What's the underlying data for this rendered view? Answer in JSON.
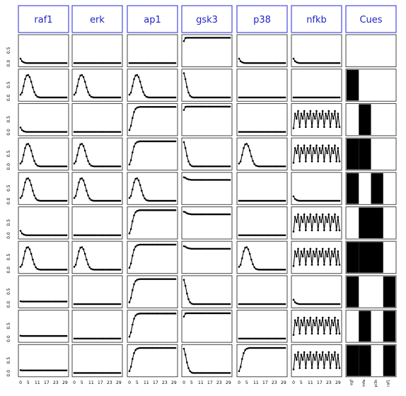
{
  "chart_data": {
    "type": "line",
    "columns": [
      "raf1",
      "erk",
      "ap1",
      "gsk3",
      "p38",
      "nfkb"
    ],
    "cues_header": "Cues",
    "cue_labels": [
      "egf",
      "tnfa",
      "pi3k",
      "raf1"
    ],
    "x": [
      0,
      1,
      2,
      3,
      4,
      5,
      6,
      7,
      8,
      9,
      10,
      11,
      12,
      13,
      14,
      15,
      16,
      17,
      18,
      19,
      20,
      21,
      22,
      23,
      24,
      25,
      26,
      27,
      28,
      29,
      30
    ],
    "x_tick_labels": [
      "0",
      "5",
      "11",
      "17",
      "23",
      "29"
    ],
    "x_tick_values": [
      0,
      5,
      11,
      17,
      23,
      29
    ],
    "y_tick_labels": [
      "0.0",
      "0.5"
    ],
    "ylim": [
      0,
      1
    ],
    "rows": [
      {
        "cues": [
          0,
          0,
          0,
          0
        ],
        "series": {
          "raf1": "dec",
          "erk": "zero",
          "ap1": "zero",
          "gsk3": "high",
          "p38": "dec",
          "nfkb": "dec"
        }
      },
      {
        "cues": [
          1,
          0,
          0,
          0
        ],
        "series": {
          "raf1": "pulse",
          "erk": "pulse",
          "ap1": "pulse",
          "gsk3": "fall",
          "p38": "zero",
          "nfkb": "zero"
        }
      },
      {
        "cues": [
          0,
          1,
          0,
          0
        ],
        "series": {
          "raf1": "dec",
          "erk": "zero",
          "ap1": "rise",
          "gsk3": "high",
          "p38": "zero",
          "nfkb": "osc"
        }
      },
      {
        "cues": [
          1,
          1,
          0,
          0
        ],
        "series": {
          "raf1": "pulse",
          "erk": "pulse",
          "ap1": "rise",
          "gsk3": "fall",
          "p38": "pulse",
          "nfkb": "osc"
        }
      },
      {
        "cues": [
          1,
          0,
          1,
          0
        ],
        "series": {
          "raf1": "pulse",
          "erk": "pulse",
          "ap1": "pulse",
          "gsk3": "highsag",
          "p38": "zero",
          "nfkb": "dec"
        }
      },
      {
        "cues": [
          0,
          1,
          1,
          0
        ],
        "series": {
          "raf1": "dec",
          "erk": "zero",
          "ap1": "rise",
          "gsk3": "highsag",
          "p38": "zero",
          "nfkb": "osc"
        }
      },
      {
        "cues": [
          1,
          1,
          1,
          0
        ],
        "series": {
          "raf1": "pulse",
          "erk": "pulse",
          "ap1": "rise",
          "gsk3": "highsag",
          "p38": "pulse",
          "nfkb": "osc"
        }
      },
      {
        "cues": [
          1,
          0,
          0,
          1
        ],
        "series": {
          "raf1": "low",
          "erk": "zero",
          "ap1": "rise",
          "gsk3": "fall",
          "p38": "zero",
          "nfkb": "dec"
        }
      },
      {
        "cues": [
          0,
          1,
          0,
          1
        ],
        "series": {
          "raf1": "low",
          "erk": "zero",
          "ap1": "rise",
          "gsk3": "high",
          "p38": "zero",
          "nfkb": "osc"
        }
      },
      {
        "cues": [
          1,
          1,
          0,
          1
        ],
        "series": {
          "raf1": "low",
          "erk": "zero",
          "ap1": "rise",
          "gsk3": "fall",
          "p38": "rise",
          "nfkb": "osc"
        }
      }
    ],
    "profiles": {
      "zero": [
        0.01,
        0.01,
        0.01,
        0.01,
        0.01,
        0.01,
        0.01,
        0.01,
        0.01,
        0.01,
        0.01,
        0.01,
        0.01,
        0.01,
        0.01,
        0.01,
        0.01,
        0.01,
        0.01,
        0.01,
        0.01,
        0.01,
        0.01,
        0.01,
        0.01,
        0.01,
        0.01,
        0.01,
        0.01,
        0.01,
        0.01
      ],
      "dec": [
        0.18,
        0.08,
        0.04,
        0.02,
        0.01,
        0.01,
        0.01,
        0.01,
        0.01,
        0.01,
        0.01,
        0.01,
        0.01,
        0.01,
        0.01,
        0.01,
        0.01,
        0.01,
        0.01,
        0.01,
        0.01,
        0.01,
        0.01,
        0.01,
        0.01,
        0.01,
        0.01,
        0.01,
        0.01,
        0.01,
        0.01
      ],
      "low": [
        0.12,
        0.11,
        0.11,
        0.11,
        0.11,
        0.11,
        0.11,
        0.11,
        0.11,
        0.11,
        0.11,
        0.11,
        0.11,
        0.11,
        0.11,
        0.11,
        0.11,
        0.11,
        0.11,
        0.11,
        0.11,
        0.11,
        0.11,
        0.11,
        0.11,
        0.11,
        0.11,
        0.11,
        0.11,
        0.11,
        0.11
      ],
      "high": [
        0.86,
        0.98,
        0.99,
        0.99,
        0.99,
        0.99,
        0.99,
        0.99,
        0.99,
        0.99,
        0.99,
        0.99,
        0.99,
        0.99,
        0.99,
        0.99,
        0.99,
        0.99,
        0.99,
        0.99,
        0.99,
        0.99,
        0.99,
        0.99,
        0.99,
        0.99,
        0.99,
        0.99,
        0.99,
        0.99,
        0.99
      ],
      "highsag": [
        0.92,
        0.9,
        0.86,
        0.84,
        0.83,
        0.82,
        0.82,
        0.82,
        0.82,
        0.82,
        0.82,
        0.82,
        0.82,
        0.82,
        0.82,
        0.82,
        0.82,
        0.82,
        0.82,
        0.82,
        0.82,
        0.82,
        0.82,
        0.82,
        0.82,
        0.82,
        0.82,
        0.82,
        0.82,
        0.82,
        0.82
      ],
      "fall": [
        0.95,
        0.72,
        0.42,
        0.2,
        0.08,
        0.03,
        0.01,
        0.01,
        0.01,
        0.01,
        0.01,
        0.01,
        0.01,
        0.01,
        0.01,
        0.01,
        0.01,
        0.01,
        0.01,
        0.01,
        0.01,
        0.01,
        0.01,
        0.01,
        0.01,
        0.01,
        0.01,
        0.01,
        0.01,
        0.01,
        0.01
      ],
      "rise": [
        0.08,
        0.25,
        0.55,
        0.78,
        0.9,
        0.95,
        0.97,
        0.98,
        0.98,
        0.98,
        0.98,
        0.98,
        0.98,
        0.98,
        0.98,
        0.98,
        0.98,
        0.98,
        0.98,
        0.98,
        0.98,
        0.98,
        0.98,
        0.98,
        0.98,
        0.98,
        0.98,
        0.98,
        0.98,
        0.98,
        0.98
      ],
      "pulse": [
        0.12,
        0.2,
        0.45,
        0.72,
        0.86,
        0.88,
        0.8,
        0.62,
        0.4,
        0.22,
        0.1,
        0.04,
        0.02,
        0.01,
        0.01,
        0.01,
        0.01,
        0.01,
        0.01,
        0.01,
        0.01,
        0.01,
        0.01,
        0.01,
        0.01,
        0.01,
        0.01,
        0.01,
        0.01,
        0.01,
        0.01
      ],
      "osc": [
        0.15,
        0.72,
        0.52,
        0.82,
        0.2,
        0.72,
        0.52,
        0.82,
        0.2,
        0.72,
        0.52,
        0.82,
        0.2,
        0.72,
        0.52,
        0.82,
        0.2,
        0.72,
        0.52,
        0.82,
        0.2,
        0.72,
        0.52,
        0.82,
        0.2,
        0.72,
        0.52,
        0.82,
        0.2,
        0.72,
        0.2
      ]
    }
  }
}
